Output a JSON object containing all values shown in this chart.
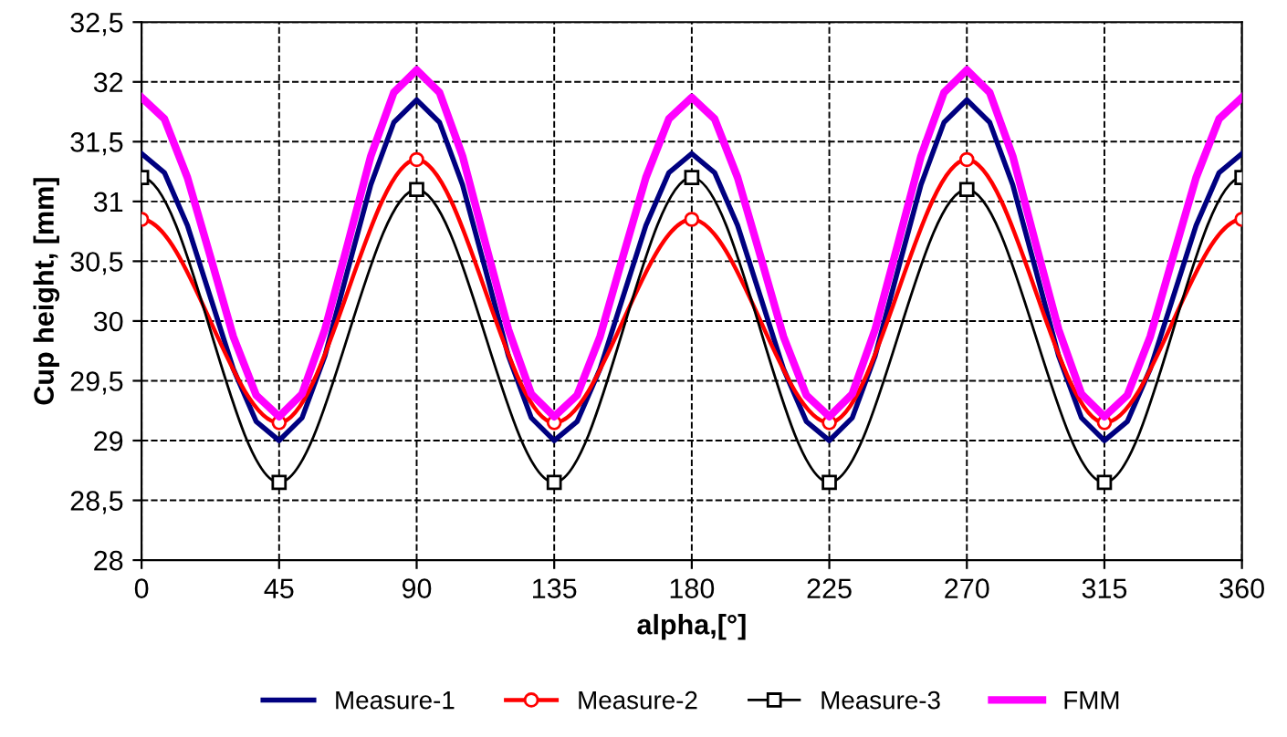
{
  "chart_data": {
    "type": "line",
    "xlabel": "alpha,[°]",
    "ylabel": "Cup height, [mm]",
    "x": [
      0,
      7.5,
      15,
      22.5,
      30,
      37.5,
      45,
      52.5,
      60,
      67.5,
      75,
      82.5,
      90,
      97.5,
      105,
      112.5,
      120,
      127.5,
      135,
      142.5,
      150,
      157.5,
      165,
      172.5,
      180,
      187.5,
      195,
      202.5,
      210,
      217.5,
      225,
      232.5,
      240,
      247.5,
      255,
      262.5,
      270,
      277.5,
      285,
      292.5,
      300,
      307.5,
      315,
      322.5,
      330,
      337.5,
      345,
      352.5,
      360
    ],
    "series": [
      {
        "name": "Measure-1",
        "color": "#000080",
        "marker": "none",
        "values": [
          31.4,
          31.24,
          30.8,
          30.2,
          29.6,
          29.16,
          29.0,
          29.19,
          29.71,
          30.43,
          31.14,
          31.66,
          31.85,
          31.66,
          31.14,
          30.43,
          29.71,
          29.19,
          29.0,
          29.16,
          29.6,
          30.2,
          30.8,
          31.24,
          31.4,
          31.24,
          30.8,
          30.2,
          29.6,
          29.16,
          29.0,
          29.19,
          29.71,
          30.43,
          31.14,
          31.66,
          31.85,
          31.66,
          31.14,
          30.43,
          29.71,
          29.19,
          29.0,
          29.16,
          29.6,
          30.2,
          30.8,
          31.24,
          31.4
        ]
      },
      {
        "name": "Measure-2",
        "color": "#ff0000",
        "marker": "circle",
        "x": [
          0,
          45,
          90,
          135,
          180,
          225,
          270,
          315,
          360
        ],
        "values": [
          30.85,
          29.15,
          31.35,
          29.15,
          30.85,
          29.15,
          31.35,
          29.15,
          30.85
        ]
      },
      {
        "name": "Measure-3",
        "color": "#000000",
        "marker": "square",
        "x": [
          0,
          45,
          90,
          135,
          180,
          225,
          270,
          315,
          360
        ],
        "values": [
          31.2,
          28.65,
          31.1,
          28.65,
          31.2,
          28.65,
          31.1,
          28.65,
          31.2
        ]
      },
      {
        "name": "FMM",
        "color": "#ff00ff",
        "marker": "none",
        "values": [
          31.87,
          31.69,
          31.2,
          30.54,
          29.87,
          29.38,
          29.2,
          29.39,
          29.93,
          30.65,
          31.38,
          31.91,
          32.1,
          31.91,
          31.38,
          30.65,
          29.93,
          29.39,
          29.2,
          29.38,
          29.87,
          30.54,
          31.2,
          31.69,
          31.87,
          31.69,
          31.2,
          30.54,
          29.87,
          29.38,
          29.2,
          29.39,
          29.93,
          30.65,
          31.38,
          31.91,
          32.1,
          31.91,
          31.38,
          30.65,
          29.93,
          29.39,
          29.2,
          29.38,
          29.87,
          30.54,
          31.2,
          31.69,
          31.87
        ]
      }
    ],
    "xlim": [
      0,
      360
    ],
    "xticks": [
      0,
      45,
      90,
      135,
      180,
      225,
      270,
      315,
      360
    ],
    "ylim": [
      28,
      32.5
    ],
    "yticks": [
      28,
      {
        "value": 28.5,
        "label": "28,5"
      },
      29,
      {
        "value": 29.5,
        "label": "29,5"
      },
      30,
      {
        "value": 30.5,
        "label": "30,5"
      },
      31,
      {
        "value": 31.5,
        "label": "31,5"
      },
      32,
      {
        "value": 32.5,
        "label": "32,5"
      }
    ],
    "grid": true,
    "legend": "bottom"
  }
}
